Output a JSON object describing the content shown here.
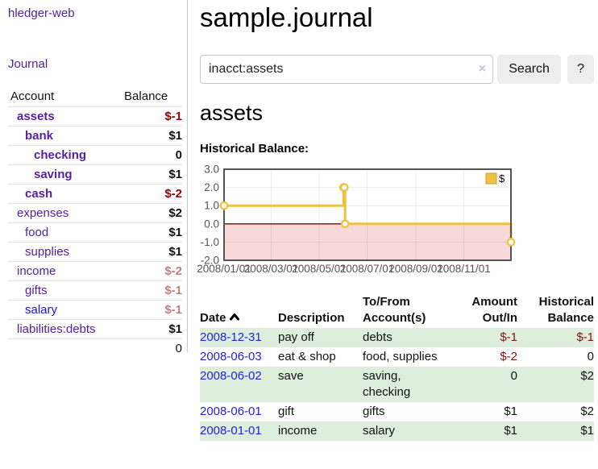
{
  "sidebar": {
    "brand": "hledger-web",
    "journal_label": "Journal",
    "accounts_table": {
      "headers": {
        "account": "Account",
        "balance": "Balance"
      },
      "rows": [
        {
          "name": "assets",
          "balance": "$-1",
          "depth": 1,
          "bold": true,
          "negative": "strong"
        },
        {
          "name": "bank",
          "balance": "$1",
          "depth": 2,
          "bold": true,
          "negative": "none"
        },
        {
          "name": "checking",
          "balance": "0",
          "depth": 3,
          "bold": true,
          "negative": "none"
        },
        {
          "name": "saving",
          "balance": "$1",
          "depth": 3,
          "bold": true,
          "negative": "none"
        },
        {
          "name": "cash",
          "balance": "$-2",
          "depth": 2,
          "bold": true,
          "negative": "strong"
        },
        {
          "name": "expenses",
          "balance": "$2",
          "depth": 1,
          "bold": false,
          "negative": "none"
        },
        {
          "name": "food",
          "balance": "$1",
          "depth": 2,
          "bold": false,
          "negative": "none"
        },
        {
          "name": "supplies",
          "balance": "$1",
          "depth": 2,
          "bold": false,
          "negative": "none"
        },
        {
          "name": "income",
          "balance": "$-2",
          "depth": 1,
          "bold": false,
          "negative": "muted"
        },
        {
          "name": "gifts",
          "balance": "$-1",
          "depth": 2,
          "bold": false,
          "negative": "muted"
        },
        {
          "name": "salary",
          "balance": "$-1",
          "depth": 2,
          "bold": false,
          "negative": "muted",
          "blue": true
        },
        {
          "name": "liabilities:debts",
          "balance": "$1",
          "depth": 1,
          "bold": false,
          "negative": "none"
        }
      ],
      "total": "0"
    }
  },
  "main": {
    "title": "sample.journal",
    "search": {
      "value": "inacct:assets",
      "clear_icon": "×",
      "button_label": "Search",
      "help_label": "?"
    },
    "account_heading": "assets",
    "chart_heading": "Historical Balance:",
    "register_table": {
      "headers": {
        "date": "Date",
        "description": "Description",
        "accounts": "To/From Account(s)",
        "amount": "Amount Out/In",
        "balance": "Historical Balance"
      },
      "rows": [
        {
          "date": "2008-12-31",
          "description": "pay off",
          "accounts": "debts",
          "amount": "$-1",
          "balance": "$-1",
          "amount_negative": true,
          "balance_negative": true,
          "highlight": true
        },
        {
          "date": "2008-06-03",
          "description": "eat & shop",
          "accounts": "food, supplies",
          "amount": "$-2",
          "balance": "0",
          "amount_negative": true,
          "balance_negative": false,
          "highlight": false
        },
        {
          "date": "2008-06-02",
          "description": "save",
          "accounts": "saving, checking",
          "amount": "0",
          "balance": "$2",
          "amount_negative": false,
          "balance_negative": false,
          "highlight": true
        },
        {
          "date": "2008-06-01",
          "description": "gift",
          "accounts": "gifts",
          "amount": "$1",
          "balance": "$2",
          "amount_negative": false,
          "balance_negative": false,
          "highlight": false
        },
        {
          "date": "2008-01-01",
          "description": "income",
          "accounts": "salary",
          "amount": "$1",
          "balance": "$1",
          "amount_negative": false,
          "balance_negative": false,
          "highlight": true
        }
      ]
    }
  },
  "chart_data": {
    "type": "line",
    "style": "step",
    "title": "Historical Balance",
    "xlim_days": [
      0,
      365
    ],
    "ylim": [
      -2,
      3
    ],
    "grid": true,
    "legend": {
      "label": "$",
      "position": "top-right"
    },
    "series": [
      {
        "name": "$",
        "color": "#edc240",
        "marker_fill": "#ffffff",
        "points": [
          {
            "date": "2008/01/01",
            "day": 0,
            "value": 1
          },
          {
            "date": "2008/06/01",
            "day": 152,
            "value": 2
          },
          {
            "date": "2008/06/02",
            "day": 153,
            "value": 2
          },
          {
            "date": "2008/06/03",
            "day": 154,
            "value": 0
          },
          {
            "date": "2008/12/31",
            "day": 365,
            "value": -1
          }
        ]
      }
    ],
    "y_ticks": [
      {
        "label": "3.0",
        "value": 3
      },
      {
        "label": "2.0",
        "value": 2
      },
      {
        "label": "1.0",
        "value": 1
      },
      {
        "label": "0.0",
        "value": 0
      },
      {
        "label": "-1.0",
        "value": -1
      },
      {
        "label": "-2.0",
        "value": -2
      }
    ],
    "x_ticks": [
      {
        "label": "2008/01/01",
        "day": 0
      },
      {
        "label": "2008/03/01",
        "day": 60
      },
      {
        "label": "2008/05/01",
        "day": 121
      },
      {
        "label": "2008/07/01",
        "day": 182
      },
      {
        "label": "2008/09/01",
        "day": 244
      },
      {
        "label": "2008/11/01",
        "day": 305
      }
    ],
    "negative_region": {
      "below": 0,
      "fill": "#f8d9da",
      "line_color": "#8b0000"
    },
    "axis_label_color": "#545454",
    "border_color": "#545454",
    "grid_color": "#000000"
  },
  "colors": {
    "link_purple": "#56219d",
    "link_blue": "#1414e6",
    "date_link_blue": "#2222dd",
    "negative_strong": "#990000",
    "negative_muted": "#c08080",
    "negative_table": "#801515",
    "row_highlight_green": "#ddeedd",
    "chart_series_yellow": "#edc240",
    "divider_gray": "#cccccc"
  }
}
